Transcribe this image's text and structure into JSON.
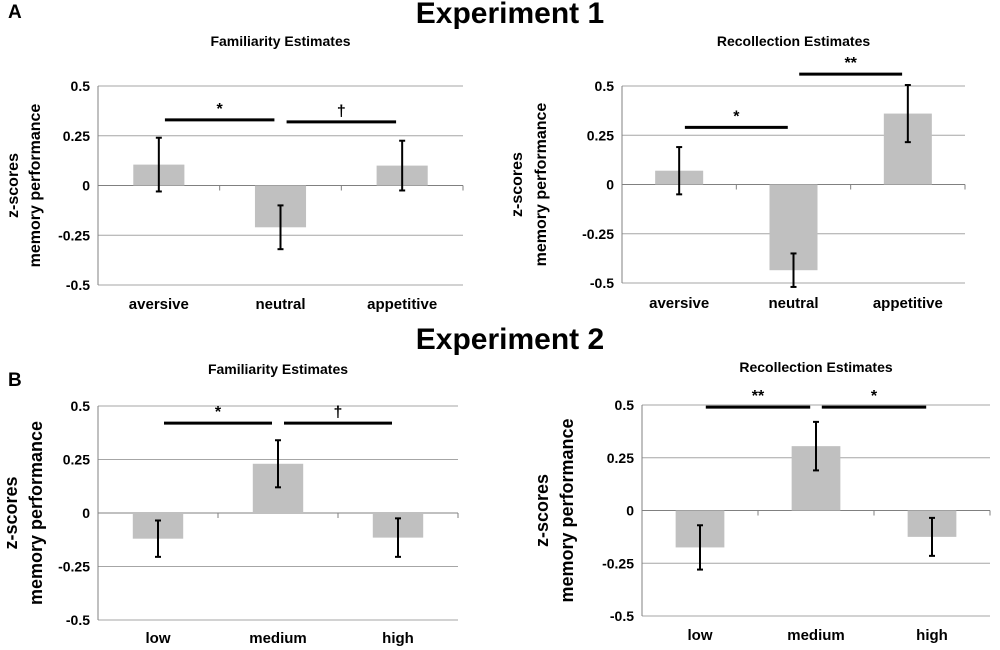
{
  "panels": {
    "a_letter": "A",
    "b_letter": "B",
    "experiment1_title": "Experiment 1",
    "experiment2_title": "Experiment 2"
  },
  "colors": {
    "bar": "#c0c0c0",
    "grid": "#a6a6a6",
    "axis": "#808080",
    "ink": "#000000"
  },
  "chart_data": [
    {
      "id": "a-familiarity",
      "type": "bar",
      "title": "Familiarity Estimates",
      "ylabel_line1": "z-scores",
      "ylabel_line2": "memory performance",
      "xlabel": "",
      "categories": [
        "aversive",
        "neutral",
        "appetitive"
      ],
      "values": [
        0.105,
        -0.21,
        0.1
      ],
      "errors": [
        0.135,
        0.11,
        0.125
      ],
      "ylim": [
        -0.5,
        0.5
      ],
      "yticks": [
        0.5,
        0.25,
        0,
        -0.25,
        -0.5
      ],
      "ytick_labels": [
        "0.5",
        "0.25",
        "0",
        "-0.25",
        "-0.5"
      ],
      "grid": true,
      "significance": [
        {
          "from": 0,
          "to": 1,
          "y": 0.33,
          "label": "*"
        },
        {
          "from": 1,
          "to": 2,
          "y": 0.32,
          "label": "†"
        }
      ]
    },
    {
      "id": "a-recollection",
      "type": "bar",
      "title": "Recollection Estimates",
      "ylabel_line1": "z-scores",
      "ylabel_line2": "memory performance",
      "xlabel": "",
      "categories": [
        "aversive",
        "neutral",
        "appetitive"
      ],
      "values": [
        0.07,
        -0.435,
        0.36
      ],
      "errors": [
        0.12,
        0.085,
        0.145
      ],
      "ylim": [
        -0.5,
        0.5
      ],
      "yticks": [
        0.5,
        0.25,
        0,
        -0.25,
        -0.5
      ],
      "ytick_labels": [
        "0.5",
        "0.25",
        "0",
        "-0.25",
        "-0.5"
      ],
      "grid": true,
      "significance": [
        {
          "from": 0,
          "to": 1,
          "y": 0.29,
          "label": "*"
        },
        {
          "from": 1,
          "to": 2,
          "y": 0.56,
          "label": "**"
        }
      ]
    },
    {
      "id": "b-familiarity",
      "type": "bar",
      "title": "Familiarity Estimates",
      "ylabel_line1": "z-scores",
      "ylabel_line2": "memory performance",
      "xlabel": "",
      "categories": [
        "low",
        "medium",
        "high"
      ],
      "values": [
        -0.12,
        0.23,
        -0.115
      ],
      "errors": [
        0.085,
        0.11,
        0.09
      ],
      "ylim": [
        -0.5,
        0.5
      ],
      "yticks": [
        0.5,
        0.25,
        0,
        -0.25,
        -0.5
      ],
      "ytick_labels": [
        "0.5",
        "0.25",
        "0",
        "-0.25",
        "-0.5"
      ],
      "grid": true,
      "significance": [
        {
          "from": 0,
          "to": 1,
          "y": 0.42,
          "label": "*"
        },
        {
          "from": 1,
          "to": 2,
          "y": 0.42,
          "label": "†"
        }
      ]
    },
    {
      "id": "b-recollection",
      "type": "bar",
      "title": "Recollection Estimates",
      "ylabel_line1": "z-scores",
      "ylabel_line2": "memory performance",
      "xlabel": "",
      "categories": [
        "low",
        "medium",
        "high"
      ],
      "values": [
        -0.175,
        0.305,
        -0.125
      ],
      "errors": [
        0.105,
        0.115,
        0.09
      ],
      "ylim": [
        -0.5,
        0.5
      ],
      "yticks": [
        0.5,
        0.25,
        0,
        -0.25,
        -0.5
      ],
      "ytick_labels": [
        "0.5",
        "0.25",
        "0",
        "-0.25",
        "-0.5"
      ],
      "grid": true,
      "significance": [
        {
          "from": 0,
          "to": 1,
          "y": 0.49,
          "label": "**"
        },
        {
          "from": 1,
          "to": 2,
          "y": 0.49,
          "label": "*"
        }
      ]
    }
  ]
}
